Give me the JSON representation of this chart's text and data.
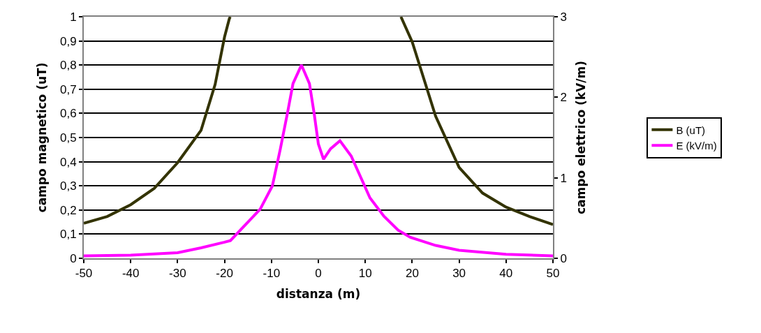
{
  "chart_data": {
    "type": "line",
    "xlabel": "distanza (m)",
    "ylabel": "campo magnetico (uT)",
    "y2label": "campo elettrico (kV/m)",
    "xlim": [
      -50,
      50
    ],
    "xticks": [
      -50,
      -40,
      -30,
      -20,
      -10,
      0,
      10,
      20,
      30,
      40,
      50
    ],
    "ylim": [
      0,
      1
    ],
    "yticks": [
      0,
      {
        "value": 0.1,
        "label": "0,1"
      },
      {
        "value": 0.2,
        "label": "0,2"
      },
      {
        "value": 0.3,
        "label": "0,3"
      },
      {
        "value": 0.4,
        "label": "0,4"
      },
      {
        "value": 0.5,
        "label": "0,5"
      },
      {
        "value": 0.6,
        "label": "0,6"
      },
      {
        "value": 0.7,
        "label": "0,7"
      },
      {
        "value": 0.8,
        "label": "0,8"
      },
      {
        "value": 0.9,
        "label": "0,9"
      },
      1
    ],
    "y2lim": [
      0,
      3
    ],
    "y2ticks": [
      0,
      1,
      2,
      3
    ],
    "grid": "y",
    "legend": "right",
    "marker": "none",
    "line_style": "solid",
    "series": [
      {
        "name": "B (uT)",
        "color": "#333300",
        "x": [
          -50,
          -45,
          -40,
          -35,
          -30,
          -25,
          -22,
          -20,
          -19,
          -18.8,
          0,
          17.6,
          20,
          25,
          30,
          35,
          40,
          45,
          50
        ],
        "values": [
          0.145,
          0.173,
          0.222,
          0.289,
          0.396,
          0.53,
          0.72,
          0.916,
          0.99,
          1.0,
          null,
          1.0,
          0.896,
          0.588,
          0.376,
          0.27,
          0.212,
          0.173,
          0.14
        ]
      },
      {
        "name": "E (kV/m)",
        "color": "#ff00ff",
        "axis": "y2",
        "x": [
          -50,
          -40,
          -30,
          -25,
          -20,
          -18.75,
          -12.4,
          -9.8,
          -8.1,
          -6.6,
          -5.4,
          -3.6,
          -1.9,
          -0.9,
          0,
          1.1,
          2.6,
          4.6,
          7,
          9,
          11,
          14,
          17,
          19.6,
          25,
          30,
          40,
          50
        ],
        "values": [
          0.03,
          0.04,
          0.07,
          0.13,
          0.2,
          0.22,
          0.61,
          0.9,
          1.36,
          1.8,
          2.17,
          2.4,
          2.17,
          1.8,
          1.42,
          1.23,
          1.36,
          1.46,
          1.27,
          1.01,
          0.75,
          0.52,
          0.35,
          0.26,
          0.16,
          0.1,
          0.05,
          0.03
        ]
      }
    ]
  }
}
